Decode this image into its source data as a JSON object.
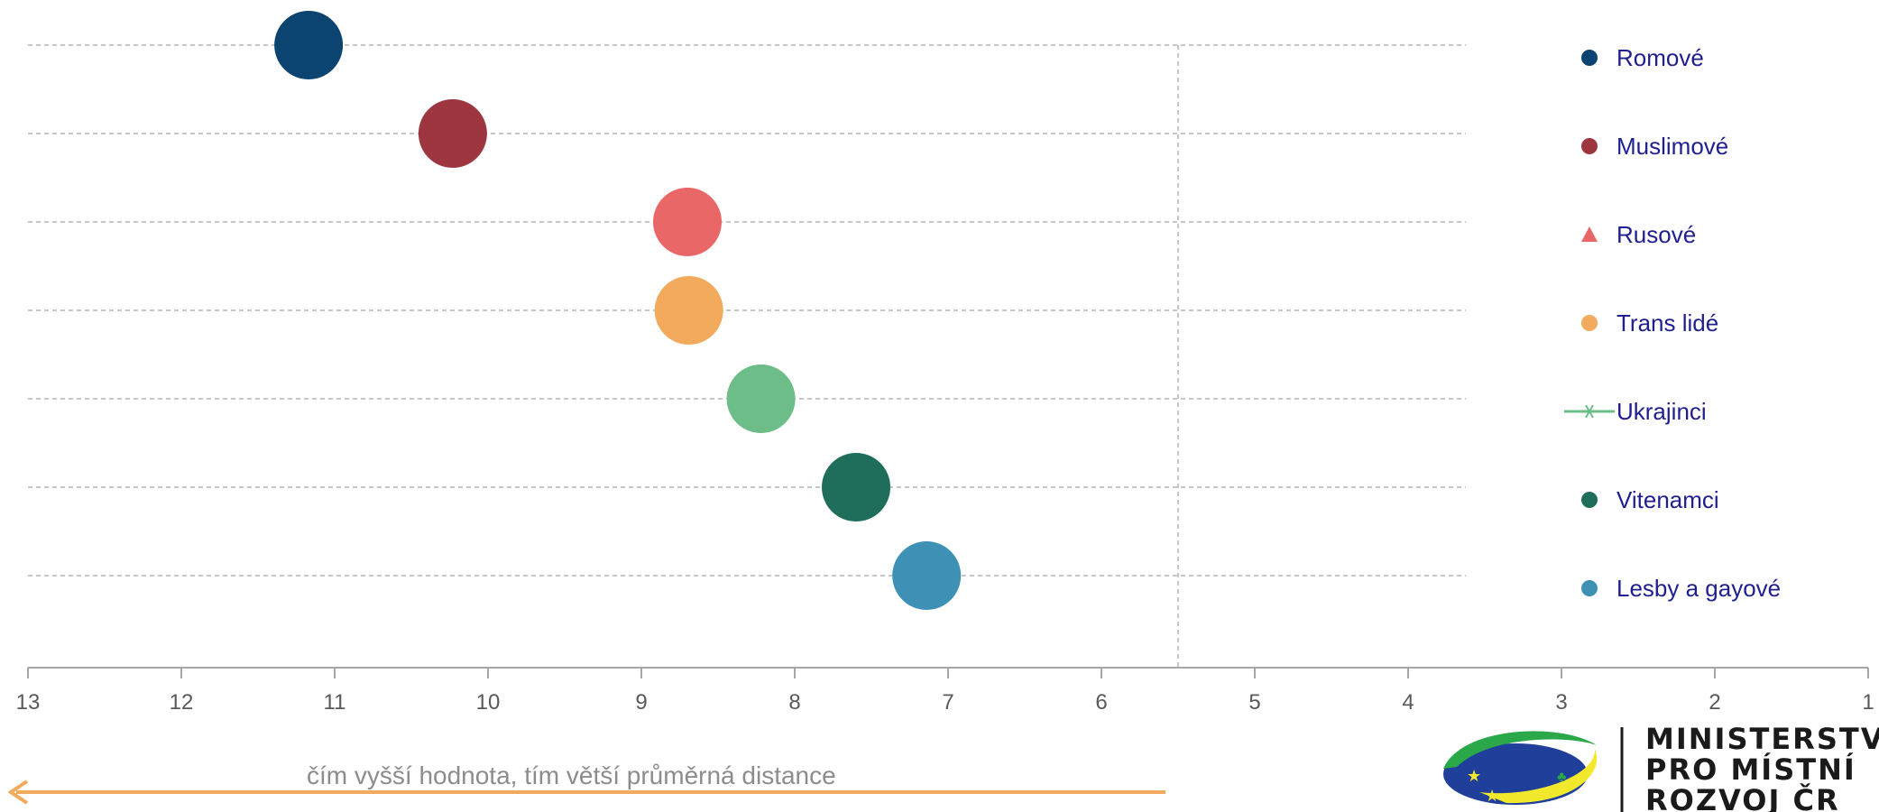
{
  "chart_data": {
    "type": "scatter",
    "title": "",
    "xlabel": "",
    "ylabel": "",
    "xlim": [
      13,
      1
    ],
    "x_reversed": true,
    "x_ticks": [
      13,
      12,
      11,
      10,
      9,
      8,
      7,
      6,
      5,
      4,
      3,
      2,
      1
    ],
    "reference_line_x": 5.5,
    "grid": "horizontal-dashed",
    "legend_position": "right",
    "series": [
      {
        "name": "Romové",
        "x": 11.17,
        "color": "#0b4470",
        "marker": "circle"
      },
      {
        "name": "Muslimové",
        "x": 10.23,
        "color": "#9e3640",
        "marker": "circle"
      },
      {
        "name": "Rusové",
        "x": 8.7,
        "color": "#ea6767",
        "marker": "triangle"
      },
      {
        "name": "Trans lidé",
        "x": 8.69,
        "color": "#f2aa5c",
        "marker": "circle"
      },
      {
        "name": "Ukrajinci",
        "x": 8.22,
        "color": "#6cbd87",
        "marker": "star-line"
      },
      {
        "name": "Vitenamci",
        "x": 7.6,
        "color": "#1f6e5c",
        "marker": "circle"
      },
      {
        "name": "Lesby a gayové",
        "x": 7.14,
        "color": "#3f90b5",
        "marker": "circle"
      }
    ],
    "annotation": {
      "text": "čím vyšší hodnota, tím větší průměrná distance",
      "arrow_direction": "left",
      "arrow_color": "#f2aa5c"
    }
  },
  "logo": {
    "line1": "MINISTERSTVO",
    "line2": "PRO MÍSTNÍ",
    "line3": "ROZVOJ ČR"
  }
}
